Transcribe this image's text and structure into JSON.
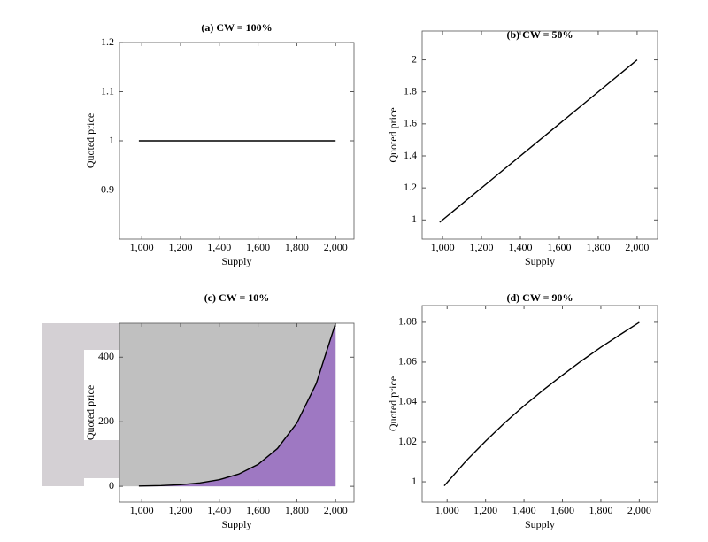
{
  "chart_data": [
    {
      "type": "line",
      "title": "(a) CW = 100%",
      "x_label": "Supply",
      "y_label": "Quoted price",
      "xlim": [
        885,
        2095
      ],
      "ylim": [
        0.8,
        1.2
      ],
      "xticks": [
        {
          "value": 1000,
          "label": "1,000"
        },
        {
          "value": 1200,
          "label": "1,200"
        },
        {
          "value": 1400,
          "label": "1,400"
        },
        {
          "value": 1600,
          "label": "1,600"
        },
        {
          "value": 1800,
          "label": "1,800"
        },
        {
          "value": 2000,
          "label": "2,000"
        }
      ],
      "yticks": [
        0.9,
        1,
        1.1,
        1.2
      ],
      "series": [
        {
          "color": "#000000",
          "x": [
            985,
            2000
          ],
          "values": [
            1,
            1
          ]
        }
      ]
    },
    {
      "type": "line",
      "title": "(b) CW = 50%",
      "x_label": "Supply",
      "y_label": "Quoted price",
      "xlim": [
        895,
        2105
      ],
      "ylim": [
        0.88,
        2.18
      ],
      "xticks": [
        {
          "value": 1000,
          "label": "1,000"
        },
        {
          "value": 1200,
          "label": "1,200"
        },
        {
          "value": 1400,
          "label": "1,400"
        },
        {
          "value": 1600,
          "label": "1,600"
        },
        {
          "value": 1800,
          "label": "1,800"
        },
        {
          "value": 2000,
          "label": "2,000"
        }
      ],
      "yticks": [
        1,
        1.2,
        1.4,
        1.6,
        1.8,
        2
      ],
      "series": [
        {
          "color": "#000000",
          "x": [
            985,
            1250,
            1500,
            1750,
            2000
          ],
          "values": [
            0.985,
            1.25,
            1.5,
            1.75,
            2
          ]
        }
      ]
    },
    {
      "type": "area",
      "title": "(c) CW = 10%",
      "x_label": "Supply",
      "y_label": "Quoted price",
      "xlim": [
        885,
        2095
      ],
      "ylim": [
        -49,
        505
      ],
      "fill_color": "#9e78c2",
      "above_color": "#c0c0c0",
      "xticks": [
        {
          "value": 1000,
          "label": "1,000"
        },
        {
          "value": 1200,
          "label": "1,200"
        },
        {
          "value": 1400,
          "label": "1,400"
        },
        {
          "value": 1600,
          "label": "1,600"
        },
        {
          "value": 1800,
          "label": "1,800"
        },
        {
          "value": 2000,
          "label": "2,000"
        }
      ],
      "yticks": [
        0,
        200,
        400
      ],
      "series": [
        {
          "color": "#000000",
          "x": [
            985,
            1100,
            1200,
            1300,
            1400,
            1500,
            1600,
            1700,
            1800,
            1900,
            2000
          ],
          "values": [
            1,
            2.3,
            5.1,
            10.5,
            20.4,
            37.9,
            67.8,
            117,
            195.6,
            318,
            505
          ]
        }
      ]
    },
    {
      "type": "line",
      "title": "(d) CW = 90%",
      "x_label": "Supply",
      "y_label": "Quoted price",
      "xlim": [
        870,
        2095
      ],
      "ylim": [
        0.9898,
        1.0884
      ],
      "xticks": [
        {
          "value": 1000,
          "label": "1,000"
        },
        {
          "value": 1200,
          "label": "1,200"
        },
        {
          "value": 1400,
          "label": "1,400"
        },
        {
          "value": 1600,
          "label": "1,600"
        },
        {
          "value": 1800,
          "label": "1,800"
        },
        {
          "value": 2000,
          "label": "2,000"
        }
      ],
      "yticks": [
        1,
        1.02,
        1.04,
        1.06,
        1.08
      ],
      "series": [
        {
          "color": "#000000",
          "x": [
            985,
            1100,
            1200,
            1300,
            1400,
            1500,
            1600,
            1700,
            1800,
            1900,
            2000
          ],
          "values": [
            0.998,
            1.0106,
            1.0204,
            1.0296,
            1.0381,
            1.046,
            1.0535,
            1.0607,
            1.0675,
            1.0738,
            1.08
          ]
        }
      ]
    }
  ]
}
